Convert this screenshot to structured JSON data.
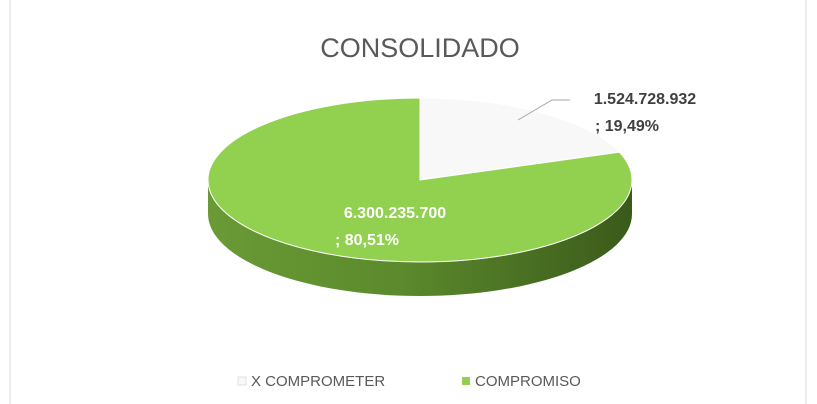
{
  "chart_data": {
    "type": "pie",
    "title": "CONSOLIDADO",
    "categories": [
      "X COMPROMETER",
      "COMPROMISO"
    ],
    "values": [
      1524728932,
      6300235700
    ],
    "value_labels": [
      "1.524.728.932",
      "6.300.235.700"
    ],
    "percent_labels": [
      "; 19,49%",
      "; 80,51%"
    ],
    "colors": [
      "#f8f8f8",
      "#92d050"
    ],
    "legend": "bottom"
  }
}
